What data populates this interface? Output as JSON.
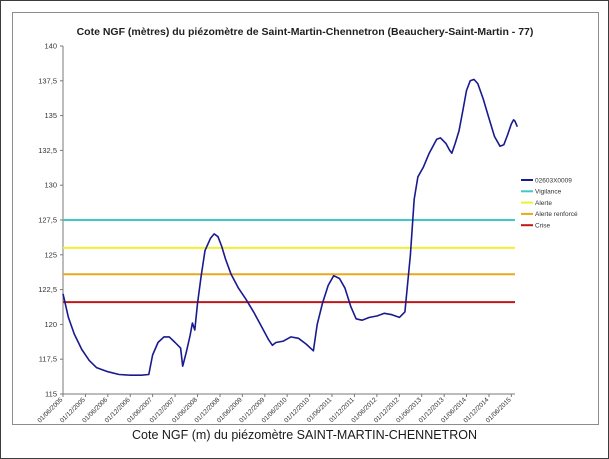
{
  "caption": "Cote NGF (m) du piézomètre SAINT-MARTIN-CHENNETRON",
  "chart_data": {
    "type": "line",
    "title": "Cote NGF (mètres) du piézomètre de Saint-Martin-Chennetron (Beauchery-Saint-Martin - 77)",
    "xlabel": "",
    "ylabel": "",
    "ylim": [
      115,
      140
    ],
    "xlim": [
      "2005-06-01",
      "2015-07-01"
    ],
    "y_ticks": [
      {
        "value": 115,
        "label": "115"
      },
      {
        "value": 117.5,
        "label": "117,5"
      },
      {
        "value": 120,
        "label": "120"
      },
      {
        "value": 122.5,
        "label": "122,5"
      },
      {
        "value": 125,
        "label": "125"
      },
      {
        "value": 127.5,
        "label": "127,5"
      },
      {
        "value": 130,
        "label": "130"
      },
      {
        "value": 132.5,
        "label": "132,5"
      },
      {
        "value": 135,
        "label": "135"
      },
      {
        "value": 137.5,
        "label": "137,5"
      },
      {
        "value": 140,
        "label": "140"
      }
    ],
    "x_ticks": [
      {
        "date": "2005-06-01",
        "label": "01/06/2005"
      },
      {
        "date": "2005-12-01",
        "label": "01/12/2005"
      },
      {
        "date": "2006-06-01",
        "label": "01/06/2006"
      },
      {
        "date": "2006-12-01",
        "label": "01/12/2006"
      },
      {
        "date": "2007-06-01",
        "label": "01/06/2007"
      },
      {
        "date": "2007-12-01",
        "label": "01/12/2007"
      },
      {
        "date": "2008-06-01",
        "label": "01/06/2008"
      },
      {
        "date": "2008-12-01",
        "label": "01/12/2008"
      },
      {
        "date": "2009-06-01",
        "label": "01/06/2009"
      },
      {
        "date": "2009-12-01",
        "label": "01/12/2009"
      },
      {
        "date": "2010-06-01",
        "label": "01/06/2010"
      },
      {
        "date": "2010-12-01",
        "label": "01/12/2010"
      },
      {
        "date": "2011-06-01",
        "label": "01/06/2011"
      },
      {
        "date": "2011-12-01",
        "label": "01/12/2011"
      },
      {
        "date": "2012-06-01",
        "label": "01/06/2012"
      },
      {
        "date": "2012-12-01",
        "label": "01/12/2012"
      },
      {
        "date": "2013-06-01",
        "label": "01/06/2013"
      },
      {
        "date": "2013-12-01",
        "label": "01/12/2013"
      },
      {
        "date": "2014-06-01",
        "label": "01/06/2014"
      },
      {
        "date": "2014-12-01",
        "label": "01/12/2014"
      },
      {
        "date": "2015-06-01",
        "label": "01/06/2015"
      }
    ],
    "series": [
      {
        "name": "02603X0009",
        "color": "#1a1a8f",
        "points": [
          [
            "2005-06-01",
            122.2
          ],
          [
            "2005-07-15",
            120.5
          ],
          [
            "2005-09-01",
            119.3
          ],
          [
            "2005-11-01",
            118.2
          ],
          [
            "2006-01-01",
            117.4
          ],
          [
            "2006-03-01",
            116.9
          ],
          [
            "2006-06-01",
            116.6
          ],
          [
            "2006-09-01",
            116.4
          ],
          [
            "2006-12-01",
            116.35
          ],
          [
            "2007-03-01",
            116.35
          ],
          [
            "2007-05-01",
            116.4
          ],
          [
            "2007-06-01",
            117.8
          ],
          [
            "2007-07-15",
            118.7
          ],
          [
            "2007-09-01",
            119.1
          ],
          [
            "2007-10-15",
            119.1
          ],
          [
            "2007-12-01",
            118.7
          ],
          [
            "2008-01-15",
            118.3
          ],
          [
            "2008-02-01",
            117.0
          ],
          [
            "2008-03-01",
            118.0
          ],
          [
            "2008-04-01",
            119.2
          ],
          [
            "2008-04-20",
            120.1
          ],
          [
            "2008-05-10",
            119.6
          ],
          [
            "2008-06-01",
            121.5
          ],
          [
            "2008-07-01",
            123.5
          ],
          [
            "2008-08-01",
            125.3
          ],
          [
            "2008-09-15",
            126.2
          ],
          [
            "2008-10-15",
            126.5
          ],
          [
            "2008-11-15",
            126.3
          ],
          [
            "2008-12-15",
            125.6
          ],
          [
            "2009-01-15",
            124.7
          ],
          [
            "2009-03-01",
            123.6
          ],
          [
            "2009-05-01",
            122.6
          ],
          [
            "2009-07-01",
            121.8
          ],
          [
            "2009-09-01",
            120.9
          ],
          [
            "2009-11-01",
            119.9
          ],
          [
            "2010-01-01",
            118.9
          ],
          [
            "2010-02-01",
            118.5
          ],
          [
            "2010-03-01",
            118.7
          ],
          [
            "2010-05-01",
            118.8
          ],
          [
            "2010-07-01",
            119.1
          ],
          [
            "2010-09-01",
            119.0
          ],
          [
            "2010-11-01",
            118.6
          ],
          [
            "2011-01-01",
            118.1
          ],
          [
            "2011-02-01",
            120.0
          ],
          [
            "2011-03-15",
            121.5
          ],
          [
            "2011-05-01",
            122.8
          ],
          [
            "2011-06-15",
            123.5
          ],
          [
            "2011-08-01",
            123.3
          ],
          [
            "2011-09-15",
            122.6
          ],
          [
            "2011-11-01",
            121.3
          ],
          [
            "2011-12-15",
            120.4
          ],
          [
            "2012-02-01",
            120.3
          ],
          [
            "2012-04-01",
            120.5
          ],
          [
            "2012-06-01",
            120.6
          ],
          [
            "2012-08-01",
            120.8
          ],
          [
            "2012-10-01",
            120.7
          ],
          [
            "2012-12-01",
            120.5
          ],
          [
            "2013-01-15",
            120.9
          ],
          [
            "2013-03-01",
            125.0
          ],
          [
            "2013-04-01",
            129.0
          ],
          [
            "2013-05-01",
            130.6
          ],
          [
            "2013-06-15",
            131.3
          ],
          [
            "2013-08-01",
            132.3
          ],
          [
            "2013-10-01",
            133.3
          ],
          [
            "2013-11-01",
            133.4
          ],
          [
            "2013-12-15",
            133.0
          ],
          [
            "2014-01-15",
            132.5
          ],
          [
            "2014-02-01",
            132.3
          ],
          [
            "2014-03-01",
            133.0
          ],
          [
            "2014-04-01",
            133.9
          ],
          [
            "2014-05-01",
            135.3
          ],
          [
            "2014-06-01",
            136.8
          ],
          [
            "2014-07-01",
            137.5
          ],
          [
            "2014-08-01",
            137.6
          ],
          [
            "2014-09-01",
            137.3
          ],
          [
            "2014-10-15",
            136.2
          ],
          [
            "2014-12-01",
            134.8
          ],
          [
            "2015-01-15",
            133.5
          ],
          [
            "2015-03-01",
            132.8
          ],
          [
            "2015-04-01",
            132.9
          ],
          [
            "2015-05-01",
            133.6
          ],
          [
            "2015-06-01",
            134.4
          ],
          [
            "2015-06-20",
            134.7
          ],
          [
            "2015-07-01",
            134.6
          ],
          [
            "2015-07-20",
            134.2
          ]
        ]
      }
    ],
    "thresholds": [
      {
        "name": "Vigilance",
        "value": 127.5,
        "color": "#40c8c8"
      },
      {
        "name": "Alerte",
        "value": 125.5,
        "color": "#f0f030"
      },
      {
        "name": "Alerte renforcé",
        "value": 123.6,
        "color": "#e8a820"
      },
      {
        "name": "Crise",
        "value": 121.6,
        "color": "#c01818"
      }
    ],
    "grid": false,
    "legend_position": "right"
  }
}
